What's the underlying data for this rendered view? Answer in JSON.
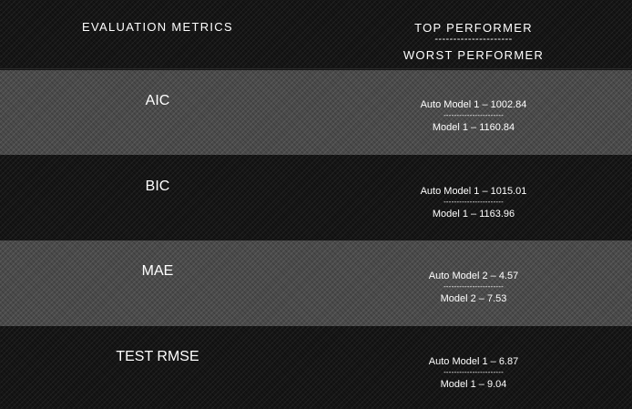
{
  "header": {
    "metric_column": "EVALUATION METRICS",
    "performer_top": "TOP PERFORMER",
    "performer_separator": "---------------------",
    "performer_bottom": "WORST PERFORMER"
  },
  "rows": [
    {
      "metric": "AIC",
      "top": "Auto Model 1 – 1002.84",
      "separator": "-----------------------",
      "worst": "Model 1 – 1160.84"
    },
    {
      "metric": "BIC",
      "top": "Auto Model 1 – 1015.01",
      "separator": "-----------------------",
      "worst": "Model 1 – 1163.96"
    },
    {
      "metric": "MAE",
      "top": "Auto Model 2 – 4.57",
      "separator": "-----------------------",
      "worst": "Model 2 – 7.53"
    },
    {
      "metric": "TEST RMSE",
      "top": "Auto Model 1 – 6.87",
      "separator": "-----------------------",
      "worst": "Model 1 – 9.04"
    }
  ]
}
